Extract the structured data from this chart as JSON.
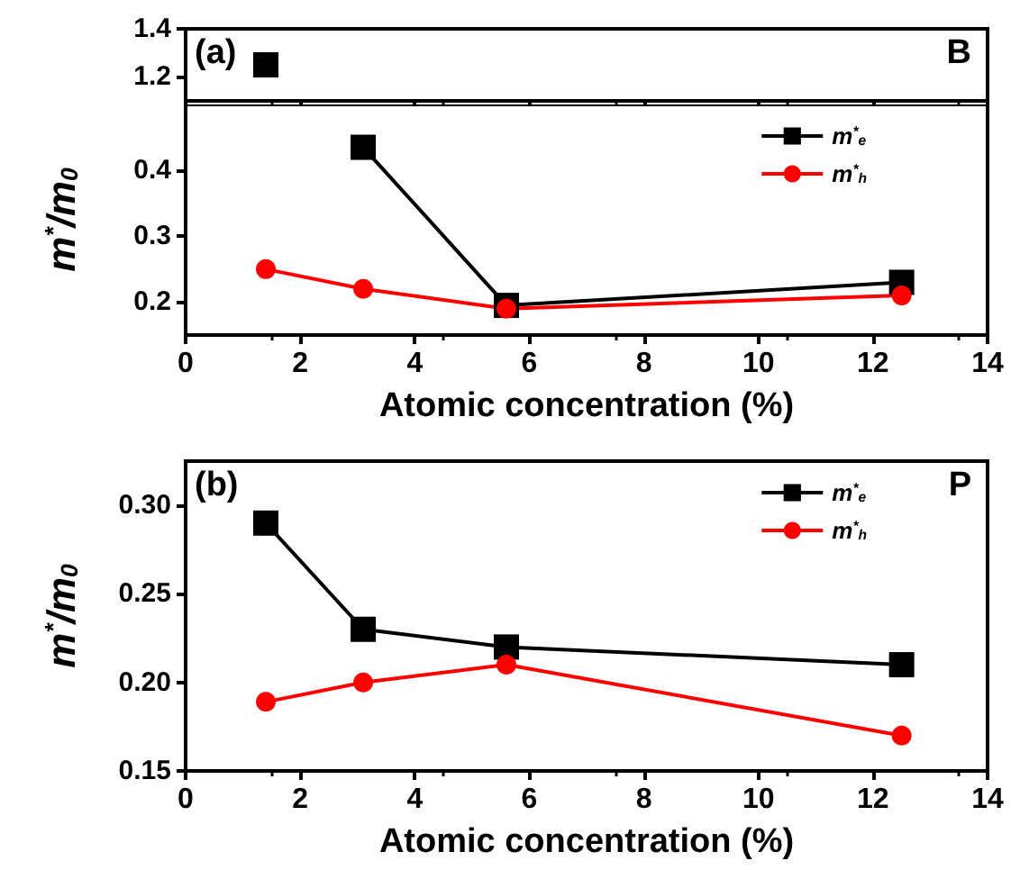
{
  "chart_data": [
    {
      "type": "line",
      "x": [
        1.4
      ],
      "annotations": [
        "(a)",
        "B"
      ],
      "xlim": [
        0,
        14
      ],
      "xticks": [
        0,
        2,
        4,
        6,
        8,
        10,
        12,
        14
      ],
      "ylim": [
        1.1,
        1.4
      ],
      "yticks": [
        1.2,
        1.4
      ],
      "tick_labels": "y",
      "legend": false,
      "series": [
        {
          "color": "#000000",
          "marker": "square",
          "values": [
            1.25
          ]
        }
      ]
    },
    {
      "type": "line",
      "x": [
        1.4,
        3.1,
        5.6,
        12.5
      ],
      "xlabel": "Atomic concentration (%)",
      "ylabel": "m$^{*}$/m$_{0}$",
      "xlim": [
        0,
        14
      ],
      "xticks": [
        0,
        2,
        4,
        6,
        8,
        10,
        12,
        14
      ],
      "ylim": [
        0.15,
        0.5
      ],
      "yticks": [
        0.2,
        0.3,
        0.4
      ],
      "legend": "top right",
      "series": [
        {
          "name": "m$^{*}$$_{e}$",
          "color": "#000000",
          "marker": "square",
          "values": [
            null,
            0.435,
            0.195,
            0.23
          ]
        },
        {
          "name": "m$^{*}$$_{h}$",
          "color": "#ff0000",
          "marker": "circle",
          "values": [
            0.25,
            0.22,
            0.19,
            0.21
          ]
        }
      ]
    },
    {
      "type": "line",
      "x": [
        1.4,
        3.1,
        5.6,
        12.5
      ],
      "annotations": [
        "(b)",
        "P"
      ],
      "xlabel": "Atomic concentration (%)",
      "ylabel": "m$^{*}$/m$_{0}$",
      "xlim": [
        0,
        14
      ],
      "xticks": [
        0,
        2,
        4,
        6,
        8,
        10,
        12,
        14
      ],
      "ylim": [
        0.15,
        0.325
      ],
      "yticks": [
        {
          "value": 0.15,
          "label": "0.15"
        },
        {
          "value": 0.2,
          "label": "0.20"
        },
        {
          "value": 0.25,
          "label": "0.25"
        },
        {
          "value": 0.3,
          "label": "0.30"
        }
      ],
      "legend": "top right",
      "series": [
        {
          "name": "m$^{*}$$_{e}$",
          "color": "#000000",
          "marker": "square",
          "values": [
            0.29,
            0.23,
            0.22,
            0.21
          ]
        },
        {
          "name": "m$^{*}$$_{h}$",
          "color": "#ff0000",
          "marker": "circle",
          "values": [
            0.189,
            0.2,
            0.21,
            0.17
          ]
        }
      ]
    }
  ]
}
